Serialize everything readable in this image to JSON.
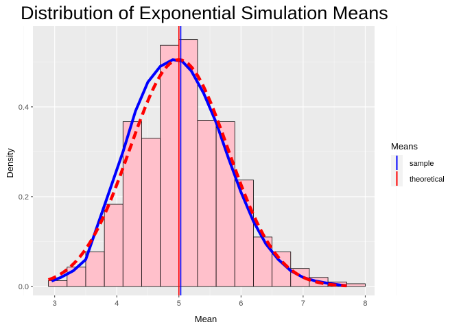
{
  "chart_data": {
    "type": "histogram",
    "title": "Distribution of Exponential Simulation Means",
    "xlabel": "Mean",
    "ylabel": "Density",
    "xlim": [
      2.65,
      8.15
    ],
    "ylim": [
      -0.02,
      0.58
    ],
    "xticks": [
      "3",
      "4",
      "5",
      "6",
      "7",
      "8"
    ],
    "yticks": [
      "0.0",
      "0.2",
      "0.4"
    ],
    "background": "#ebebeb",
    "grid": true,
    "bins": {
      "start": 2.9,
      "width": 0.3,
      "densities": [
        0.013,
        0.043,
        0.077,
        0.183,
        0.367,
        0.33,
        0.537,
        0.55,
        0.37,
        0.367,
        0.237,
        0.11,
        0.077,
        0.04,
        0.02,
        0.01,
        0.006
      ]
    },
    "bar_fill": "#ffc0cb",
    "bar_stroke": "#000000",
    "curves": {
      "sample_density": {
        "x": [
          2.95,
          3.1,
          3.3,
          3.5,
          3.7,
          3.9,
          4.1,
          4.3,
          4.5,
          4.7,
          4.9,
          5.05,
          5.2,
          5.4,
          5.6,
          5.8,
          6.0,
          6.2,
          6.4,
          6.6,
          6.8,
          7.0,
          7.2,
          7.4,
          7.6,
          7.7
        ],
        "y": [
          0.012,
          0.02,
          0.035,
          0.06,
          0.14,
          0.22,
          0.3,
          0.39,
          0.455,
          0.49,
          0.505,
          0.502,
          0.48,
          0.43,
          0.365,
          0.285,
          0.21,
          0.145,
          0.095,
          0.06,
          0.035,
          0.02,
          0.012,
          0.007,
          0.003,
          0.002
        ],
        "color": "#0000ff"
      },
      "theoretical_density": {
        "mean": 5.0,
        "sd": 0.79,
        "x_range": [
          2.9,
          7.7
        ],
        "color": "#ff0000"
      }
    },
    "vlines": [
      {
        "name": "sample",
        "x": 5.03,
        "color": "#0000ff"
      },
      {
        "name": "theoretical",
        "x": 5.0,
        "color": "#ff0000"
      }
    ],
    "legend": {
      "title": "Means",
      "position": "right",
      "items": [
        {
          "label": "sample",
          "color": "#0000ff"
        },
        {
          "label": "theoretical",
          "color": "#ff0000"
        }
      ]
    }
  }
}
